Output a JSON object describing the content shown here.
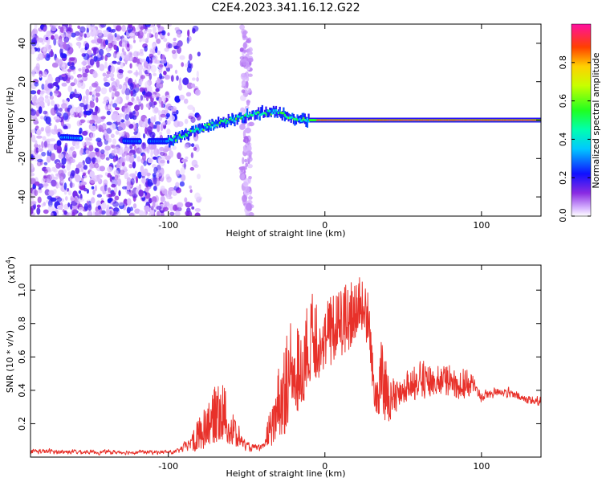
{
  "chart_data": [
    {
      "type": "heatmap",
      "title": "C2E4.2023.341.16.12.G22",
      "xlabel": "Height of straight line (km)",
      "ylabel": "Frequency (Hz)",
      "xlim": [
        -188,
        138
      ],
      "ylim": [
        -50,
        50
      ],
      "x_ticks": [
        -100,
        0,
        100
      ],
      "y_ticks": [
        -40,
        -20,
        0,
        20,
        40
      ],
      "colorbar": {
        "label": "Normalized spectral amplitude",
        "range": [
          0,
          1
        ],
        "ticks": [
          "0.0",
          "0.2",
          "0.4",
          "0.6",
          "0.8"
        ]
      },
      "ridge": [
        {
          "x": -165,
          "y": -9
        },
        {
          "x": -125,
          "y": -11
        },
        {
          "x": -100,
          "y": -11
        },
        {
          "x": -85,
          "y": -6
        },
        {
          "x": -70,
          "y": -2
        },
        {
          "x": -55,
          "y": 1
        },
        {
          "x": -40,
          "y": 4
        },
        {
          "x": -30,
          "y": 4
        },
        {
          "x": -20,
          "y": 1
        },
        {
          "x": -10,
          "y": 0
        },
        {
          "x": 0,
          "y": 0
        },
        {
          "x": 138,
          "y": 0
        }
      ]
    },
    {
      "type": "line",
      "title": "",
      "xlabel": "Height of straight line (km)",
      "ylabel": "SNR (10 * v/v)",
      "y_multiplier": "(x10",
      "y_multiplier_exp": "4",
      "xlim": [
        -188,
        138
      ],
      "ylim": [
        0,
        1.15
      ],
      "x_ticks": [
        -100,
        0,
        100
      ],
      "y_ticks": [
        "0.2",
        "0.4",
        "0.6",
        "0.8",
        "1.0"
      ],
      "series": [
        {
          "color": "#e8312a",
          "envelope": [
            {
              "x": -188,
              "lo": 0.01,
              "hi": 0.06
            },
            {
              "x": -150,
              "lo": 0.01,
              "hi": 0.05
            },
            {
              "x": -95,
              "lo": 0.01,
              "hi": 0.05
            },
            {
              "x": -88,
              "lo": 0.02,
              "hi": 0.12
            },
            {
              "x": -78,
              "lo": 0.04,
              "hi": 0.28
            },
            {
              "x": -72,
              "lo": 0.08,
              "hi": 0.4
            },
            {
              "x": -66,
              "lo": 0.1,
              "hi": 0.47
            },
            {
              "x": -58,
              "lo": 0.05,
              "hi": 0.25
            },
            {
              "x": -50,
              "lo": 0.02,
              "hi": 0.1
            },
            {
              "x": -40,
              "lo": 0.02,
              "hi": 0.08
            },
            {
              "x": -35,
              "lo": 0.05,
              "hi": 0.3
            },
            {
              "x": -28,
              "lo": 0.1,
              "hi": 0.6
            },
            {
              "x": -22,
              "lo": 0.2,
              "hi": 0.85
            },
            {
              "x": -15,
              "lo": 0.3,
              "hi": 0.75
            },
            {
              "x": -8,
              "lo": 0.45,
              "hi": 1.05
            },
            {
              "x": 0,
              "lo": 0.5,
              "hi": 0.95
            },
            {
              "x": 8,
              "lo": 0.6,
              "hi": 1.0
            },
            {
              "x": 15,
              "lo": 0.62,
              "hi": 1.05
            },
            {
              "x": 22,
              "lo": 0.75,
              "hi": 1.15
            },
            {
              "x": 28,
              "lo": 0.65,
              "hi": 0.98
            },
            {
              "x": 32,
              "lo": 0.25,
              "hi": 0.45
            },
            {
              "x": 36,
              "lo": 0.25,
              "hi": 0.85
            },
            {
              "x": 40,
              "lo": 0.2,
              "hi": 0.5
            },
            {
              "x": 48,
              "lo": 0.3,
              "hi": 0.45
            },
            {
              "x": 55,
              "lo": 0.35,
              "hi": 0.55
            },
            {
              "x": 60,
              "lo": 0.3,
              "hi": 0.66
            },
            {
              "x": 65,
              "lo": 0.35,
              "hi": 0.55
            },
            {
              "x": 72,
              "lo": 0.38,
              "hi": 0.55
            },
            {
              "x": 85,
              "lo": 0.35,
              "hi": 0.55
            },
            {
              "x": 95,
              "lo": 0.35,
              "hi": 0.5
            },
            {
              "x": 100,
              "lo": 0.3,
              "hi": 0.42
            },
            {
              "x": 112,
              "lo": 0.35,
              "hi": 0.45
            },
            {
              "x": 125,
              "lo": 0.3,
              "hi": 0.4
            },
            {
              "x": 138,
              "lo": 0.28,
              "hi": 0.38
            }
          ]
        }
      ]
    }
  ]
}
